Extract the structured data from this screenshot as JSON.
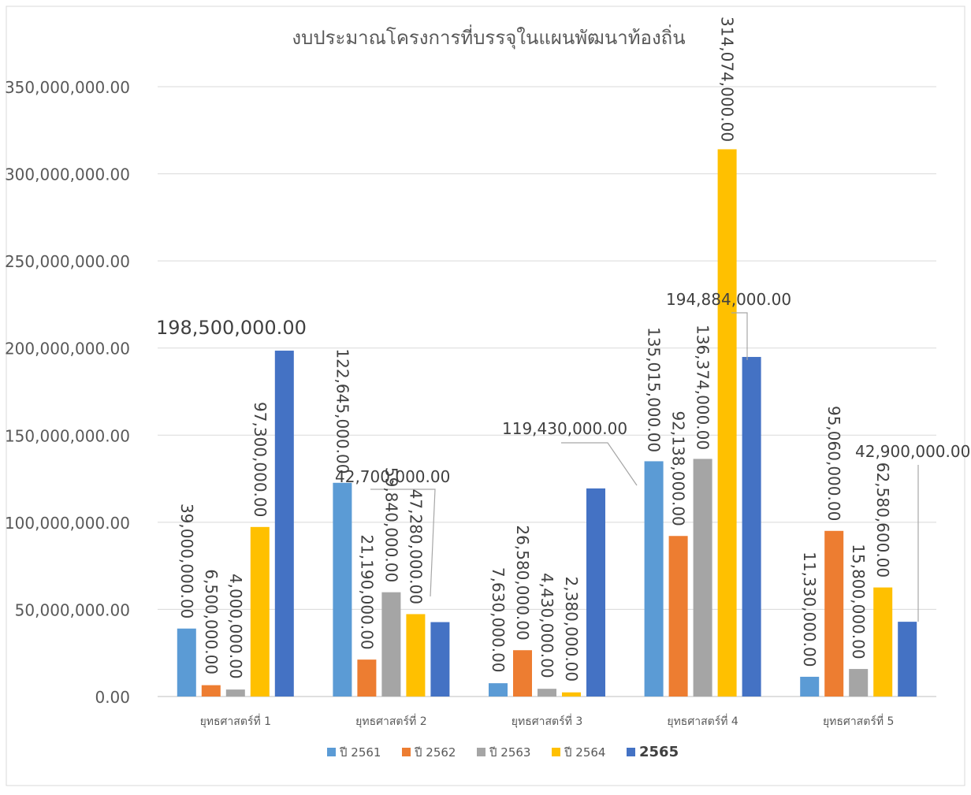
{
  "chart_data": {
    "type": "bar",
    "title": "งบประมาณโครงการที่บรรจุในแผนพัฒนาท้องถิ่น",
    "categories": [
      "ยุทธศาสตร์ที่ 1",
      "ยุทธศาสตร์ที่ 2",
      "ยุทธศาสตร์ที่ 3",
      "ยุทธศาสตร์ที่ 4",
      "ยุทธศาสตร์ที่ 5"
    ],
    "ylim": [
      0,
      350000000
    ],
    "y_ticks": [
      "0.00",
      "50,000,000.00",
      "100,000,000.00",
      "150,000,000.00",
      "200,000,000.00",
      "250,000,000.00",
      "300,000,000.00",
      "350,000,000.00"
    ],
    "grid": true,
    "legend_position": "bottom",
    "series": [
      {
        "name": "ปี 2561",
        "color": "#5B9BD5",
        "values": [
          39000000,
          122645000,
          7630000,
          135015000,
          11330000
        ],
        "labels": [
          "39,000,000.00",
          "122,645,000.00",
          "7,630,000.00",
          "135,015,000.00",
          "11,330,000.00"
        ]
      },
      {
        "name": "ปี 2562",
        "color": "#ED7D31",
        "values": [
          6500000,
          21190000,
          26580000,
          92138000,
          95060000
        ],
        "labels": [
          "6,500,000.00",
          "21,190,000.00",
          "26,580,000.00",
          "92,138,000.00",
          "95,060,000.00"
        ]
      },
      {
        "name": "ปี 2563",
        "color": "#A5A5A5",
        "values": [
          4000000,
          59840000,
          4430000,
          136374000,
          15800000
        ],
        "labels": [
          "4,000,000.00",
          "59,840,000.00",
          "4,430,000.00",
          "136,374,000.00",
          "15,800,000.00"
        ]
      },
      {
        "name": "ปี 2564",
        "color": "#FFC000",
        "values": [
          97300000,
          47280000,
          2380000,
          314074000,
          62580600
        ],
        "labels": [
          "97,300,000.00",
          "47,280,000.00",
          "2,380,000.00",
          "314,074,000.00",
          "62,580,600.00"
        ]
      },
      {
        "name": "2565",
        "color": "#4472C4",
        "values": [
          198500000,
          42700000,
          119430000,
          194884000,
          42900000
        ],
        "labels": [
          "198,500,000.00",
          "42,700,000.00",
          "119,430,000.00",
          "194,884,000.00",
          "42,900,000.00"
        ]
      }
    ]
  }
}
